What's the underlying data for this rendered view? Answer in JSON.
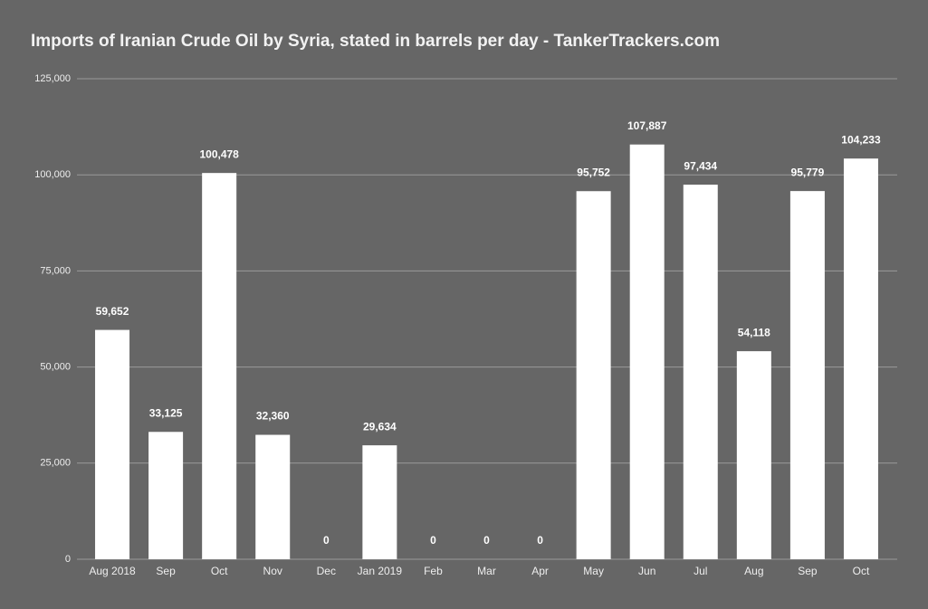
{
  "chart_data": {
    "type": "bar",
    "title": "Imports of Iranian Crude Oil by Syria, stated in barrels per day - TankerTrackers.com",
    "categories": [
      "Aug 2018",
      "Sep",
      "Oct",
      "Nov",
      "Dec",
      "Jan 2019",
      "Feb",
      "Mar",
      "Apr",
      "May",
      "Jun",
      "Jul",
      "Aug",
      "Sep",
      "Oct"
    ],
    "values": [
      59652,
      33125,
      100478,
      32360,
      0,
      29634,
      0,
      0,
      0,
      95752,
      107887,
      97434,
      54118,
      95779,
      104233
    ],
    "value_labels": [
      "59,652",
      "33,125",
      "100,478",
      "32,360",
      "0",
      "29,634",
      "0",
      "0",
      "0",
      "95,752",
      "107,887",
      "97,434",
      "54,118",
      "95,779",
      "104,233"
    ],
    "color": "#ffffff",
    "ylim": [
      0,
      125000
    ],
    "yticks": [
      0,
      {
        "value": 25000,
        "label": "25,000"
      },
      {
        "value": 50000,
        "label": "50,000"
      },
      {
        "value": 75000,
        "label": "75,000"
      },
      {
        "value": 100000,
        "label": "100,000"
      },
      {
        "value": 125000,
        "label": "125,000"
      }
    ],
    "grid": true
  }
}
